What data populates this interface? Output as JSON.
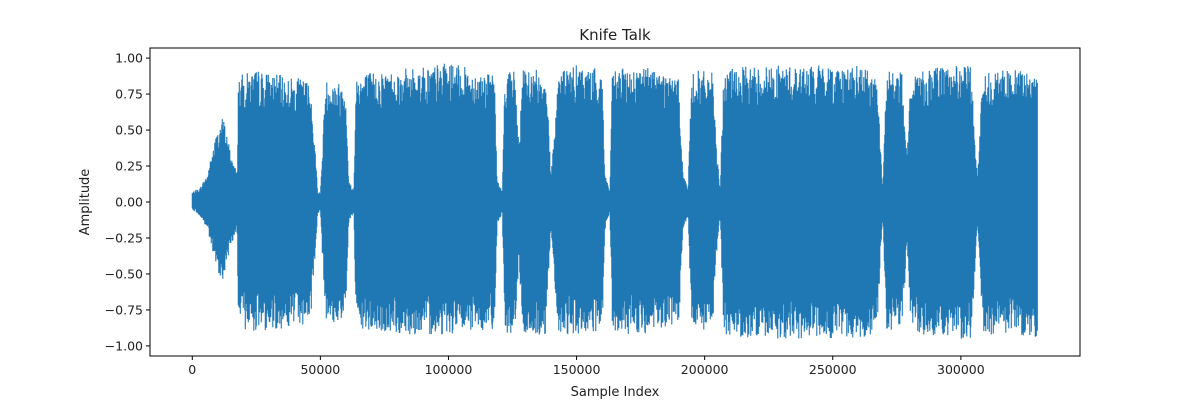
{
  "chart_data": {
    "type": "line",
    "title": "Knife Talk",
    "xlabel": "Sample Index",
    "ylabel": "Amplitude",
    "xlim": [
      -16500,
      346500
    ],
    "ylim": [
      -1.07,
      1.07
    ],
    "xticks": [
      0,
      50000,
      100000,
      150000,
      200000,
      250000,
      300000
    ],
    "xtick_labels": [
      "0",
      "50000",
      "100000",
      "150000",
      "200000",
      "250000",
      "300000"
    ],
    "yticks": [
      -1.0,
      -0.75,
      -0.5,
      -0.25,
      0.0,
      0.25,
      0.5,
      0.75,
      1.0
    ],
    "ytick_labels": [
      "−1.00",
      "−0.75",
      "−0.50",
      "−0.25",
      "0.00",
      "0.25",
      "0.50",
      "0.75",
      "1.00"
    ],
    "grid": false,
    "legend": "none",
    "series": [
      {
        "color": "#1f77b4",
        "x_range": [
          0,
          330000
        ],
        "envelope": {
          "x": [
            0,
            3000,
            6000,
            9000,
            12000,
            15000,
            17500,
            18000,
            25000,
            35000,
            45000,
            46500,
            49000,
            50000,
            52000,
            56000,
            60000,
            61000,
            63000,
            64000,
            80000,
            100000,
            118000,
            119000,
            121000,
            122000,
            126000,
            127500,
            129000,
            134000,
            138000,
            140000,
            143000,
            150000,
            160000,
            161000,
            163000,
            164000,
            180000,
            190000,
            191500,
            193500,
            195000,
            203000,
            204500,
            206000,
            207500,
            220000,
            240000,
            260000,
            265000,
            267500,
            269500,
            271000,
            277000,
            279000,
            280500,
            300000,
            304000,
            306500,
            308500,
            320000,
            330000
          ],
          "upper": [
            0.07,
            0.1,
            0.2,
            0.45,
            0.6,
            0.35,
            0.2,
            0.88,
            0.92,
            0.88,
            0.85,
            0.75,
            0.08,
            0.06,
            0.85,
            0.85,
            0.8,
            0.15,
            0.08,
            0.9,
            0.92,
            0.97,
            0.88,
            0.15,
            0.08,
            0.92,
            0.92,
            0.4,
            0.92,
            0.92,
            0.92,
            0.2,
            0.92,
            0.95,
            0.92,
            0.2,
            0.08,
            0.92,
            0.95,
            0.85,
            0.2,
            0.1,
            0.92,
            0.9,
            0.4,
            0.1,
            0.92,
            0.95,
            0.95,
            0.95,
            0.92,
            0.8,
            0.1,
            0.92,
            0.9,
            0.3,
            0.92,
            0.95,
            0.95,
            0.15,
            0.92,
            0.92,
            0.9
          ],
          "lower": [
            -0.05,
            -0.1,
            -0.2,
            -0.45,
            -0.55,
            -0.3,
            -0.2,
            -0.88,
            -0.9,
            -0.88,
            -0.85,
            -0.75,
            -0.08,
            -0.06,
            -0.85,
            -0.85,
            -0.8,
            -0.15,
            -0.08,
            -0.9,
            -0.92,
            -0.92,
            -0.88,
            -0.15,
            -0.08,
            -0.92,
            -0.92,
            -0.4,
            -0.92,
            -0.95,
            -0.92,
            -0.2,
            -0.92,
            -0.92,
            -0.92,
            -0.2,
            -0.08,
            -0.92,
            -0.92,
            -0.85,
            -0.2,
            -0.1,
            -0.92,
            -0.9,
            -0.4,
            -0.1,
            -0.92,
            -0.95,
            -0.95,
            -0.95,
            -0.92,
            -0.8,
            -0.1,
            -0.92,
            -0.9,
            -0.3,
            -0.92,
            -0.95,
            -0.95,
            -0.15,
            -0.92,
            -0.92,
            -0.95
          ]
        }
      }
    ]
  }
}
